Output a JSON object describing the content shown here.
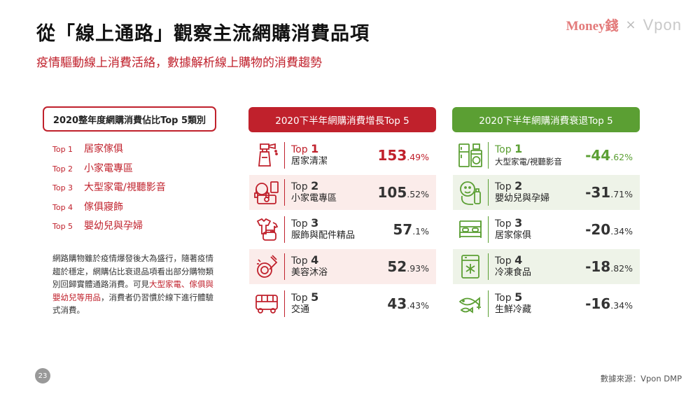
{
  "title": "從「線上通路」觀察主流網購消費品項",
  "subtitle": "疫情驅動線上消費活絡，數據解析線上購物的消費趨勢",
  "logos": {
    "money": "Money錢",
    "x": "×",
    "vpon": "Vpon"
  },
  "left": {
    "title": "2020整年度網購消費佔比Top 5類別",
    "items": [
      {
        "rank": "Top 1",
        "name": "居家傢俱"
      },
      {
        "rank": "Top 2",
        "name": "小家電專區"
      },
      {
        "rank": "Top 3",
        "name": "大型家電/視聽影音"
      },
      {
        "rank": "Top 4",
        "name": "傢俱寢飾"
      },
      {
        "rank": "Top 5",
        "name": "嬰幼兒與孕婦"
      }
    ],
    "desc_part1": "網路購物雖於疫情爆發後大為盛行，隨著疫情趨於穩定，網購佔比衰退品項看出部分購物類別回歸實體通路消費。可見",
    "desc_highlight": "大型家電、傢俱與嬰幼兒等用品",
    "desc_part2": "，消費者仍習慣於線下進行體驗式消費。"
  },
  "growth": {
    "title": "2020下半年網購消費增長Top 5",
    "items": [
      {
        "top": "Top",
        "num": "1",
        "name": "居家清潔",
        "val_int": "153",
        "val_dec": ".49%",
        "icon": "cleaning-spray-icon"
      },
      {
        "top": "Top",
        "num": "2",
        "name": "小家電專區",
        "val_int": "105",
        "val_dec": ".52%",
        "icon": "appliance-icon"
      },
      {
        "top": "Top",
        "num": "3",
        "name": "服飾與配件精品",
        "val_int": "57",
        "val_dec": ".1%",
        "icon": "clothing-icon"
      },
      {
        "top": "Top",
        "num": "4",
        "name": "美容沐浴",
        "val_int": "52",
        "val_dec": ".93%",
        "icon": "cosmetics-icon"
      },
      {
        "top": "Top",
        "num": "5",
        "name": "交通",
        "val_int": "43",
        "val_dec": ".43%",
        "icon": "bus-icon"
      }
    ]
  },
  "decline": {
    "title": "2020下半年網購消費衰退Top 5",
    "items": [
      {
        "top": "Top",
        "num": "1",
        "name": "大型家電/視聽影音",
        "val_int": "-44",
        "val_dec": ".62%",
        "icon": "fridge-washer-icon"
      },
      {
        "top": "Top",
        "num": "2",
        "name": "嬰幼兒與孕婦",
        "val_int": "-31",
        "val_dec": ".71%",
        "icon": "baby-bottle-icon"
      },
      {
        "top": "Top",
        "num": "3",
        "name": "居家傢俱",
        "val_int": "-20",
        "val_dec": ".34%",
        "icon": "bed-icon"
      },
      {
        "top": "Top",
        "num": "4",
        "name": "冷凍食品",
        "val_int": "-18",
        "val_dec": ".82%",
        "icon": "freezer-icon"
      },
      {
        "top": "Top",
        "num": "5",
        "name": "生鮮冷藏",
        "val_int": "-16",
        "val_dec": ".34%",
        "icon": "fish-icon"
      }
    ]
  },
  "page_number": "23",
  "source": "數據來源：Vpon DMP",
  "colors": {
    "red": "#c0212c",
    "green": "#5b9f33",
    "red_shade": "#fbecea",
    "green_shade": "#eef3e8"
  }
}
